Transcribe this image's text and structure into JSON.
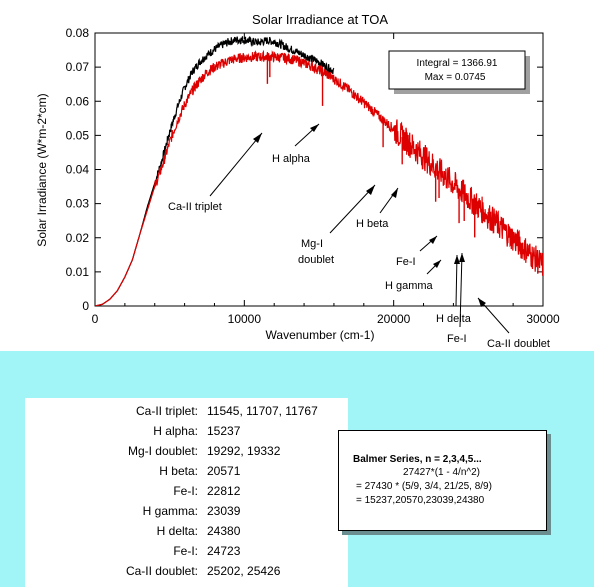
{
  "chart_data": {
    "type": "line",
    "title": "Solar Irradiance at TOA",
    "xlabel": "Wavenumber (cm-1)",
    "ylabel": "Solar Irradiance (W*m-2*cm)",
    "xlim": [
      0,
      30000
    ],
    "ylim": [
      0,
      0.08
    ],
    "x_ticks": [
      "0",
      "10000",
      "20000",
      "30000"
    ],
    "y_ticks": [
      "0",
      "0.01",
      "0.02",
      "0.03",
      "0.04",
      "0.05",
      "0.06",
      "0.07",
      "0.08"
    ],
    "grid": false,
    "series": [
      {
        "color": "#000000",
        "x": [
          0,
          500,
          1000,
          1500,
          2000,
          2500,
          3000,
          3500,
          4000,
          4500,
          5000,
          5500,
          6000,
          6500,
          7000,
          7500,
          8000,
          8500,
          9000,
          9500,
          10000,
          10500,
          11000,
          11500,
          12000,
          12500,
          13000,
          13500,
          14000,
          14500,
          15000,
          15500,
          16000
        ],
        "y": [
          0,
          0.0005,
          0.002,
          0.0045,
          0.0085,
          0.0135,
          0.021,
          0.029,
          0.036,
          0.043,
          0.051,
          0.058,
          0.064,
          0.0685,
          0.0715,
          0.0735,
          0.0752,
          0.0765,
          0.0775,
          0.078,
          0.0781,
          0.0775,
          0.0772,
          0.0778,
          0.0775,
          0.0765,
          0.0755,
          0.0745,
          0.0735,
          0.0725,
          0.0715,
          0.07,
          0.069
        ]
      },
      {
        "color": "#dd0000",
        "x": [
          0,
          500,
          1000,
          1500,
          2000,
          2500,
          3000,
          3500,
          4000,
          4500,
          5000,
          5500,
          6000,
          6500,
          7000,
          7500,
          8000,
          8500,
          9000,
          9500,
          10000,
          10500,
          11000,
          11500,
          12000,
          12500,
          13000,
          13500,
          14000,
          14500,
          15000,
          15500,
          16000,
          16500,
          17000,
          17500,
          18000,
          18500,
          19000,
          19500,
          20000,
          20500,
          21000,
          21500,
          22000,
          22500,
          23000,
          23500,
          24000,
          24500,
          25000,
          25500,
          26000,
          26500,
          27000,
          27500,
          28000,
          28500,
          29000,
          29500,
          30000
        ],
        "y": [
          0,
          0.0005,
          0.002,
          0.0045,
          0.0085,
          0.0135,
          0.021,
          0.028,
          0.035,
          0.041,
          0.048,
          0.054,
          0.059,
          0.063,
          0.066,
          0.0685,
          0.07,
          0.071,
          0.072,
          0.0725,
          0.0728,
          0.073,
          0.073,
          0.0731,
          0.073,
          0.0728,
          0.0725,
          0.072,
          0.0712,
          0.0703,
          0.0692,
          0.068,
          0.0665,
          0.065,
          0.0633,
          0.0615,
          0.0596,
          0.0577,
          0.0557,
          0.0537,
          0.0518,
          0.0498,
          0.0478,
          0.0458,
          0.0438,
          0.0418,
          0.0398,
          0.0378,
          0.0358,
          0.0338,
          0.0318,
          0.0298,
          0.0278,
          0.0258,
          0.0238,
          0.0218,
          0.0198,
          0.0178,
          0.0158,
          0.0138,
          0.0118
        ]
      }
    ],
    "info_box": {
      "integral": "Integral = 1366.91",
      "max": "Max = 0.0745"
    },
    "annotations": [
      {
        "text": "Ca-II triplet",
        "x": 11545,
        "y": 0.0703
      },
      {
        "text": "H alpha",
        "x": 15237,
        "y": 0.0545
      },
      {
        "text": "H beta",
        "x": 20571,
        "y": 0.0477
      },
      {
        "text": "Mg-I",
        "x": 19292,
        "y": 0.0435
      },
      {
        "text": "doublet",
        "x": 19292,
        "y": 0.0435
      },
      {
        "text": "Fe-I",
        "x": 22812,
        "y": 0.0292
      },
      {
        "text": "H gamma",
        "x": 23039,
        "y": 0.0253
      },
      {
        "text": "H delta",
        "x": 24380,
        "y": 0.0152
      },
      {
        "text": "Fe-I",
        "x": 24723,
        "y": 0.0152
      },
      {
        "text": "Ca-II doublet",
        "x": 25426,
        "y": 0.002
      }
    ]
  },
  "lines_table": [
    {
      "name": "Ca-II triplet:",
      "value": "11545, 11707, 11767"
    },
    {
      "name": "H alpha:",
      "value": "15237"
    },
    {
      "name": "Mg-I doublet:",
      "value": "19292, 19332"
    },
    {
      "name": "H beta:",
      "value": "20571"
    },
    {
      "name": "Fe-I:",
      "value": "22812"
    },
    {
      "name": "H gamma:",
      "value": "23039"
    },
    {
      "name": "H delta:",
      "value": "24380"
    },
    {
      "name": "Fe-I:",
      "value": "24723"
    },
    {
      "name": "Ca-II doublet:",
      "value": "25202, 25426"
    }
  ],
  "balmer": {
    "heading": "Balmer  Series, n = 2,3,4,5...",
    "formula": "27427*(1 - 4/n^2)",
    "expansion": "= 27430 * (5/9, 3/4, 21/25, 8/9)",
    "result": "=  15237,20570,23039,24380"
  },
  "colors": {
    "panel_bg": "#a2f5f7",
    "red_series": "#dd0000",
    "black_series": "#000000"
  }
}
